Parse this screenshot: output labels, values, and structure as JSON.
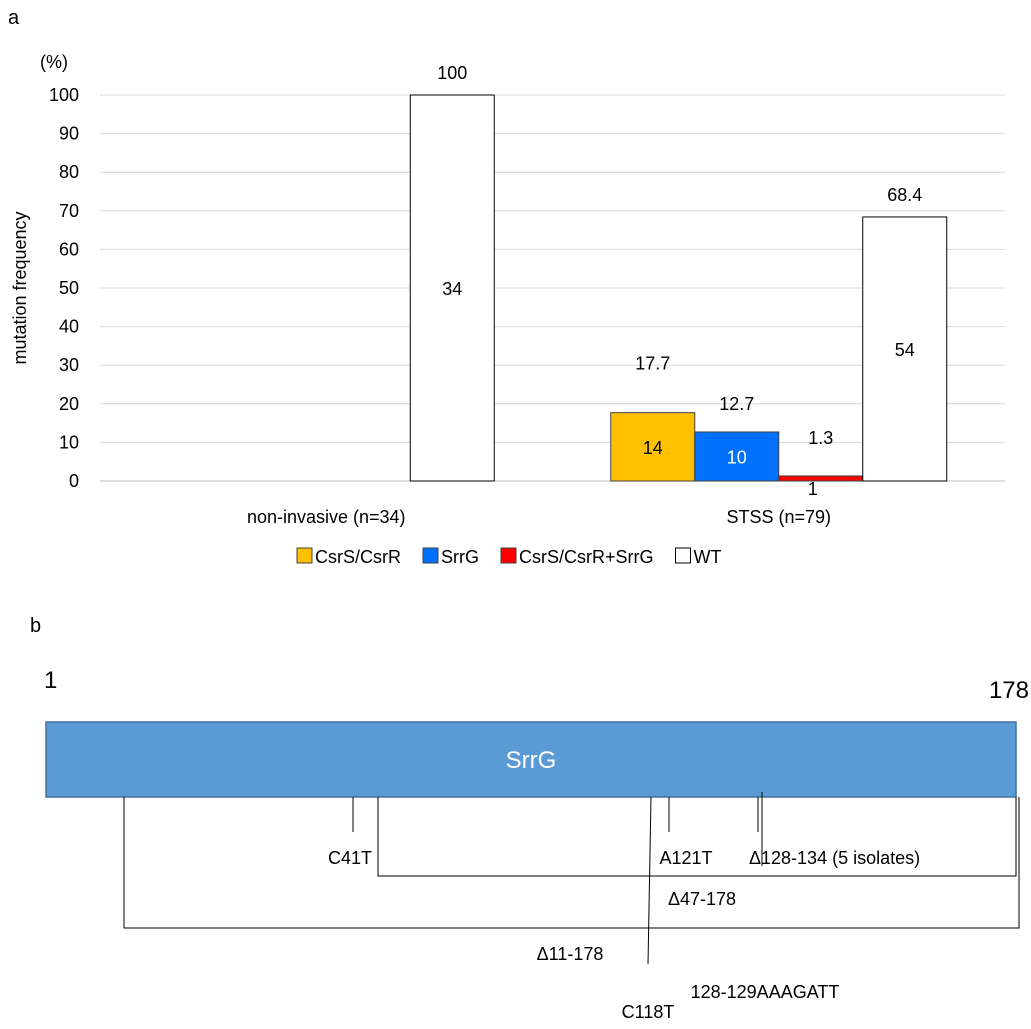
{
  "panel_a_label": "a",
  "panel_b_label": "b",
  "colors": {
    "CsrS/CsrR": "#ffc000",
    "SrrG": "#0070ff",
    "CsrS/CsrR+SrrG": "#ff0000",
    "WT": "#ffffff",
    "gene": "#5b9bd5"
  },
  "chart_data": {
    "type": "bar",
    "title": "",
    "ylabel": "mutation frequency",
    "yunit": "(%)",
    "ylim": [
      0,
      100
    ],
    "yticks": [
      0,
      10,
      20,
      30,
      40,
      50,
      60,
      70,
      80,
      90,
      100
    ],
    "grid": true,
    "legend_position": "bottom",
    "categories": [
      "non-invasive (n=34)",
      "STSS (n=79)"
    ],
    "series": [
      {
        "name": "CsrS/CsrR",
        "values": [
          null,
          17.7
        ],
        "counts": [
          null,
          "14"
        ]
      },
      {
        "name": "SrrG",
        "values": [
          null,
          12.7
        ],
        "counts": [
          null,
          "10"
        ]
      },
      {
        "name": "CsrS/CsrR+SrrG",
        "values": [
          null,
          1.3
        ],
        "counts": [
          null,
          "1"
        ]
      },
      {
        "name": "WT",
        "values": [
          100,
          68.4
        ],
        "counts": [
          "34",
          "54"
        ]
      }
    ]
  },
  "gene_map": {
    "name": "SrrG",
    "start_label": "1",
    "end_label": "178",
    "mutations": [
      "C41T",
      "A121T",
      "Δ128-134 (5  isolates)",
      "Δ47-178",
      "Δ11-178",
      "128-129AAAGATT",
      "C118T"
    ]
  }
}
